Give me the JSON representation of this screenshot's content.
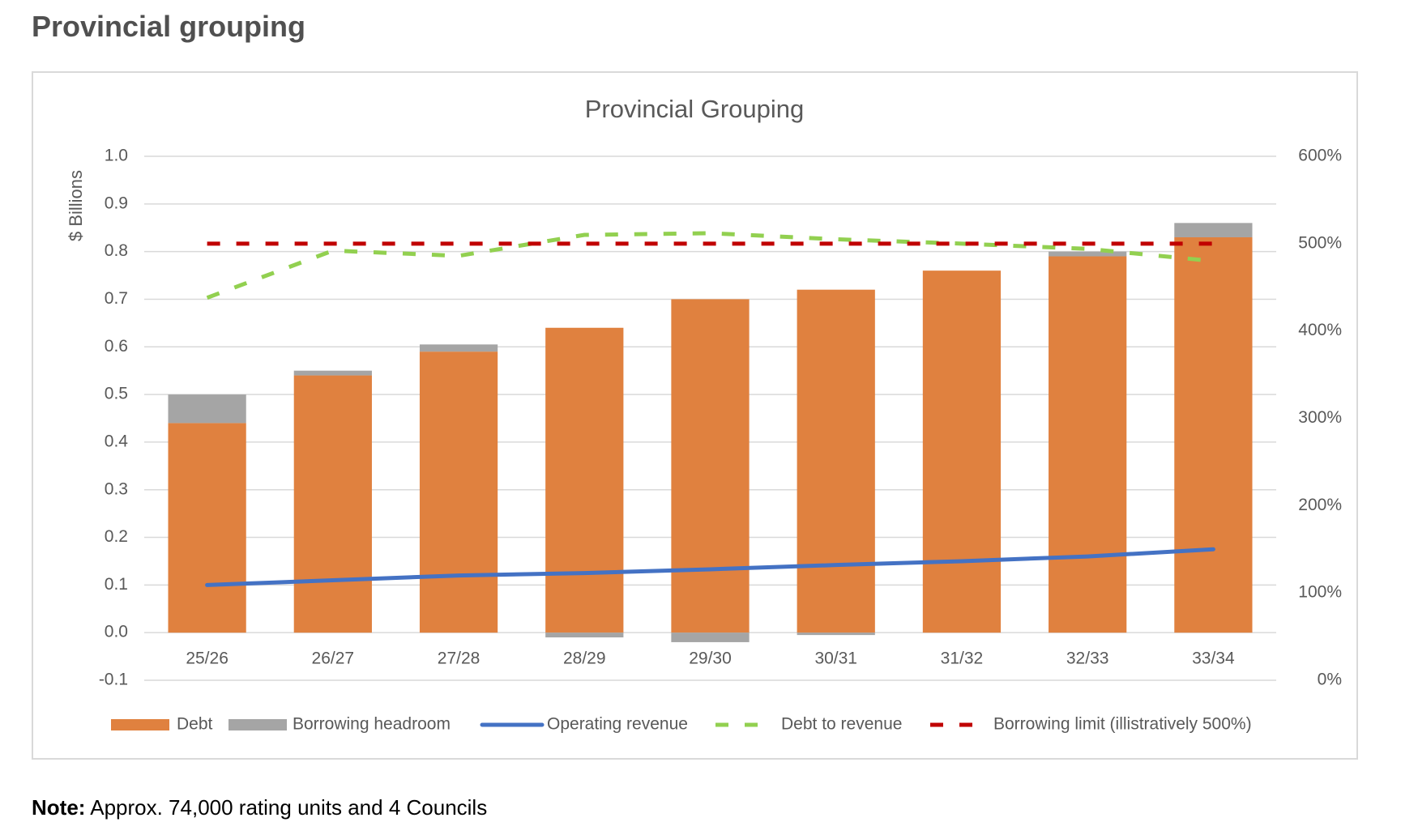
{
  "page_title": "Provincial grouping",
  "chart_data": {
    "type": "bar",
    "title": "Provincial Grouping",
    "y_label": "$ Billions",
    "categories": [
      "25/26",
      "26/27",
      "27/28",
      "28/29",
      "29/30",
      "30/31",
      "31/32",
      "32/33",
      "33/34"
    ],
    "series": [
      {
        "name": "Debt",
        "type": "bar",
        "color": "#e0813f",
        "values": [
          0.44,
          0.54,
          0.59,
          0.64,
          0.7,
          0.72,
          0.76,
          0.79,
          0.83
        ]
      },
      {
        "name": "Borrowing headroom",
        "type": "bar",
        "color": "#a5a5a5",
        "values": [
          0.06,
          0.01,
          0.015,
          -0.01,
          -0.02,
          -0.005,
          0,
          0.01,
          0.03
        ]
      },
      {
        "name": "Operating revenue",
        "type": "line",
        "color": "#4472c4",
        "dashed": false,
        "values": [
          0.1,
          0.11,
          0.12,
          0.125,
          0.133,
          0.142,
          0.15,
          0.16,
          0.175
        ]
      },
      {
        "name": "Debt to revenue",
        "type": "line",
        "color": "#92d050",
        "dashed": true,
        "axis": "y2",
        "values": [
          438,
          492,
          486,
          510,
          512,
          505,
          500,
          494,
          480
        ]
      },
      {
        "name": "Borrowing limit (illistratively 500%)",
        "type": "line",
        "color": "#c00000",
        "dashed": true,
        "axis": "y2",
        "values": [
          500,
          500,
          500,
          500,
          500,
          500,
          500,
          500,
          500
        ]
      }
    ],
    "ylim": [
      -0.1,
      1.0
    ],
    "yticks": [
      -0.1,
      {
        "value": 0,
        "label": "0.0"
      },
      0.1,
      0.2,
      0.3,
      0.4,
      0.5,
      0.6,
      0.7,
      0.8,
      0.9,
      {
        "value": 1,
        "label": "1.0"
      }
    ],
    "y2lim": [
      0,
      600
    ],
    "y2ticks": [
      {
        "value": 0,
        "label": "0%"
      },
      {
        "value": 100,
        "label": "100%"
      },
      {
        "value": 200,
        "label": "200%"
      },
      {
        "value": 300,
        "label": "300%"
      },
      {
        "value": 400,
        "label": "400%"
      },
      {
        "value": 500,
        "label": "500%"
      },
      {
        "value": 600,
        "label": "600%"
      }
    ],
    "grid": true,
    "legend": "bottom"
  },
  "note": {
    "label": "Note:",
    "text": "Approx. 74,000 rating units and 4 Councils"
  }
}
